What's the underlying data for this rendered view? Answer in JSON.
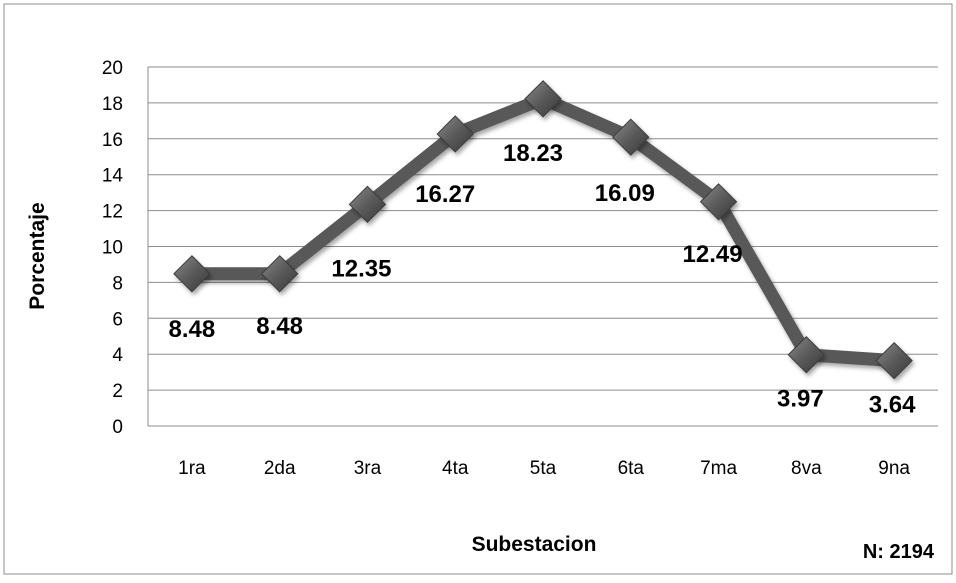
{
  "chart_data": {
    "type": "line",
    "categories": [
      "1ra",
      "2da",
      "3ra",
      "4ta",
      "5ta",
      "6ta",
      "7ma",
      "8va",
      "9na"
    ],
    "values": [
      8.48,
      8.48,
      12.35,
      16.27,
      18.23,
      16.09,
      12.49,
      3.97,
      3.64
    ],
    "data_labels": [
      "8.48",
      "8.48",
      "12.35",
      "16.27",
      "18.23",
      "16.09",
      "12.49",
      "3.97",
      "3.64"
    ],
    "xlabel": "Subestacion",
    "ylabel": "Porcentaje",
    "ylim": [
      0,
      20
    ],
    "yticks": [
      "0",
      "2",
      "4",
      "6",
      "8",
      "10",
      "12",
      "14",
      "16",
      "18",
      "20"
    ],
    "grid": "horizontal",
    "legend": "none",
    "note": "N: 2194",
    "line_color": "#595959",
    "marker_color": "#5a5a5a"
  }
}
